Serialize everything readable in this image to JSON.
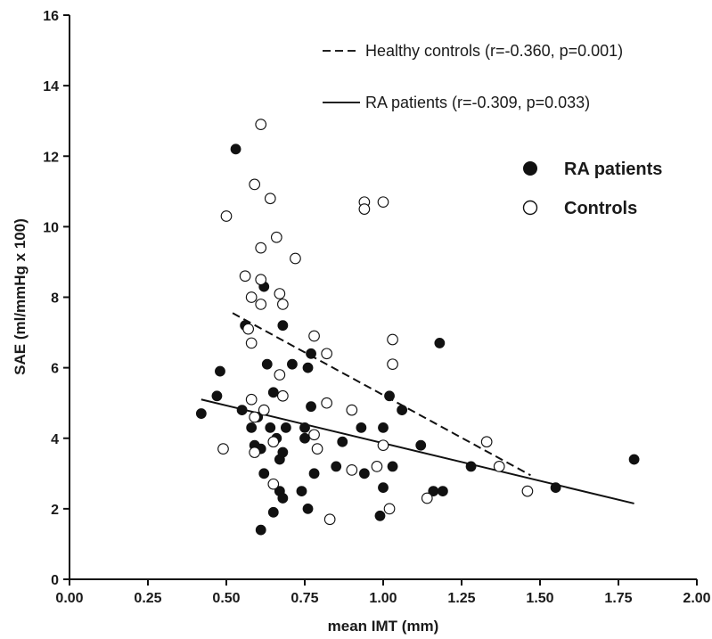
{
  "chart_data": {
    "type": "scatter",
    "xlabel": "mean IMT (mm)",
    "ylabel": "SAE (ml/mmHg x 100)",
    "xlim": [
      0,
      2
    ],
    "ylim": [
      0,
      16
    ],
    "x_ticks": [
      "0.00",
      "0.25",
      "0.50",
      "0.75",
      "1.00",
      "1.25",
      "1.50",
      "1.75",
      "2.00"
    ],
    "y_ticks": [
      "0",
      "2",
      "4",
      "6",
      "8",
      "10",
      "12",
      "14",
      "16"
    ],
    "x_tick_values": [
      0,
      0.25,
      0.5,
      0.75,
      1.0,
      1.25,
      1.5,
      1.75,
      2.0
    ],
    "y_tick_values": [
      0,
      2,
      4,
      6,
      8,
      10,
      12,
      14,
      16
    ],
    "grid": false,
    "line_legend": [
      {
        "label": "Healthy controls (r=-0.360, p=0.001)",
        "style": "dashed"
      },
      {
        "label": "RA patients (r=-0.309, p=0.033)",
        "style": "solid"
      }
    ],
    "marker_legend": [
      {
        "label": "RA patients",
        "marker": "filled"
      },
      {
        "label": "Controls",
        "marker": "open"
      }
    ],
    "regression_lines": [
      {
        "series": "Controls",
        "style": "dashed",
        "x": [
          0.52,
          1.47
        ],
        "y": [
          7.55,
          2.95
        ]
      },
      {
        "series": "RA patients",
        "style": "solid",
        "x": [
          0.42,
          1.8
        ],
        "y": [
          5.1,
          2.15
        ]
      }
    ],
    "series": [
      {
        "name": "RA patients",
        "marker": "filled",
        "points": [
          [
            0.42,
            4.7
          ],
          [
            0.47,
            5.2
          ],
          [
            0.48,
            5.9
          ],
          [
            0.53,
            12.2
          ],
          [
            0.55,
            4.8
          ],
          [
            0.56,
            7.2
          ],
          [
            0.58,
            4.3
          ],
          [
            0.59,
            3.8
          ],
          [
            0.6,
            4.6
          ],
          [
            0.61,
            3.7
          ],
          [
            0.61,
            1.4
          ],
          [
            0.62,
            3.0
          ],
          [
            0.62,
            8.3
          ],
          [
            0.63,
            6.1
          ],
          [
            0.64,
            4.3
          ],
          [
            0.65,
            5.3
          ],
          [
            0.66,
            4.0
          ],
          [
            0.65,
            1.9
          ],
          [
            0.67,
            3.4
          ],
          [
            0.67,
            2.5
          ],
          [
            0.68,
            3.6
          ],
          [
            0.68,
            7.2
          ],
          [
            0.68,
            2.3
          ],
          [
            0.69,
            4.3
          ],
          [
            0.71,
            6.1
          ],
          [
            0.74,
            2.5
          ],
          [
            0.75,
            4.0
          ],
          [
            0.75,
            4.3
          ],
          [
            0.76,
            6.0
          ],
          [
            0.76,
            2.0
          ],
          [
            0.77,
            4.9
          ],
          [
            0.77,
            6.4
          ],
          [
            0.78,
            3.0
          ],
          [
            0.85,
            3.2
          ],
          [
            0.87,
            3.9
          ],
          [
            0.93,
            4.3
          ],
          [
            0.94,
            3.0
          ],
          [
            0.99,
            1.8
          ],
          [
            1.0,
            2.6
          ],
          [
            1.0,
            4.3
          ],
          [
            1.02,
            5.2
          ],
          [
            1.03,
            3.2
          ],
          [
            1.06,
            4.8
          ],
          [
            1.12,
            3.8
          ],
          [
            1.16,
            2.5
          ],
          [
            1.18,
            6.7
          ],
          [
            1.19,
            2.5
          ],
          [
            1.28,
            3.2
          ],
          [
            1.55,
            2.6
          ],
          [
            1.8,
            3.4
          ]
        ]
      },
      {
        "name": "Controls",
        "marker": "open",
        "points": [
          [
            0.49,
            3.7
          ],
          [
            0.5,
            10.3
          ],
          [
            0.56,
            8.6
          ],
          [
            0.57,
            7.1
          ],
          [
            0.58,
            8.0
          ],
          [
            0.58,
            6.7
          ],
          [
            0.58,
            5.1
          ],
          [
            0.59,
            11.2
          ],
          [
            0.59,
            4.6
          ],
          [
            0.59,
            3.6
          ],
          [
            0.61,
            12.9
          ],
          [
            0.61,
            9.4
          ],
          [
            0.61,
            8.5
          ],
          [
            0.61,
            7.8
          ],
          [
            0.62,
            4.8
          ],
          [
            0.64,
            10.8
          ],
          [
            0.65,
            3.9
          ],
          [
            0.65,
            2.7
          ],
          [
            0.66,
            9.7
          ],
          [
            0.67,
            8.1
          ],
          [
            0.67,
            5.8
          ],
          [
            0.68,
            7.8
          ],
          [
            0.68,
            5.2
          ],
          [
            0.72,
            9.1
          ],
          [
            0.78,
            6.9
          ],
          [
            0.78,
            4.1
          ],
          [
            0.79,
            3.7
          ],
          [
            0.82,
            6.4
          ],
          [
            0.82,
            5.0
          ],
          [
            0.83,
            1.7
          ],
          [
            0.9,
            4.8
          ],
          [
            0.9,
            3.1
          ],
          [
            0.94,
            10.7
          ],
          [
            0.94,
            10.5
          ],
          [
            0.98,
            3.2
          ],
          [
            1.0,
            10.7
          ],
          [
            1.0,
            3.8
          ],
          [
            1.02,
            2.0
          ],
          [
            1.03,
            6.8
          ],
          [
            1.03,
            6.1
          ],
          [
            1.14,
            2.3
          ],
          [
            1.33,
            3.9
          ],
          [
            1.37,
            3.2
          ],
          [
            1.46,
            2.5
          ]
        ]
      }
    ]
  }
}
